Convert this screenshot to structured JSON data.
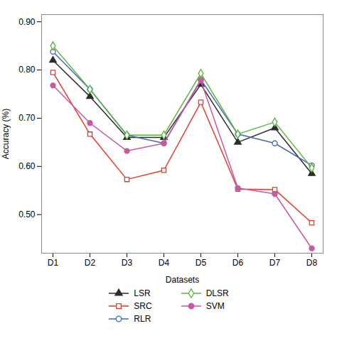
{
  "chart_data": {
    "type": "line",
    "categories": [
      "D1",
      "D2",
      "D3",
      "D4",
      "D5",
      "D6",
      "D7",
      "D8"
    ],
    "series": [
      {
        "name": "LSR",
        "color": "#2c2c2c",
        "marker": "triangle",
        "values": [
          0.82,
          0.745,
          0.66,
          0.66,
          0.77,
          0.65,
          0.68,
          0.585
        ]
      },
      {
        "name": "SRC",
        "color": "#e8392a",
        "marker": "square-open",
        "values": [
          0.795,
          0.667,
          0.573,
          0.592,
          0.733,
          0.553,
          0.552,
          0.483
        ]
      },
      {
        "name": "RLR",
        "color": "#4169b8",
        "marker": "circle-open",
        "values": [
          0.838,
          0.76,
          0.665,
          0.648,
          0.78,
          0.667,
          0.648,
          0.602
        ]
      },
      {
        "name": "DLSR",
        "color": "#5ab53c",
        "marker": "diamond-open",
        "values": [
          0.85,
          0.76,
          0.665,
          0.665,
          0.793,
          0.667,
          0.692,
          0.597
        ]
      },
      {
        "name": "SVM",
        "color": "#c958a0",
        "marker": "circle",
        "values": [
          0.768,
          0.69,
          0.632,
          0.648,
          0.778,
          0.555,
          0.543,
          0.43
        ]
      }
    ],
    "xlabel": "Datasets",
    "ylabel": "Accuracy (%)",
    "ylim": [
      0.42,
      0.915
    ],
    "yticks": [
      0.5,
      0.6,
      0.7,
      0.8,
      0.9
    ],
    "grid": false,
    "legend": "bottom"
  }
}
